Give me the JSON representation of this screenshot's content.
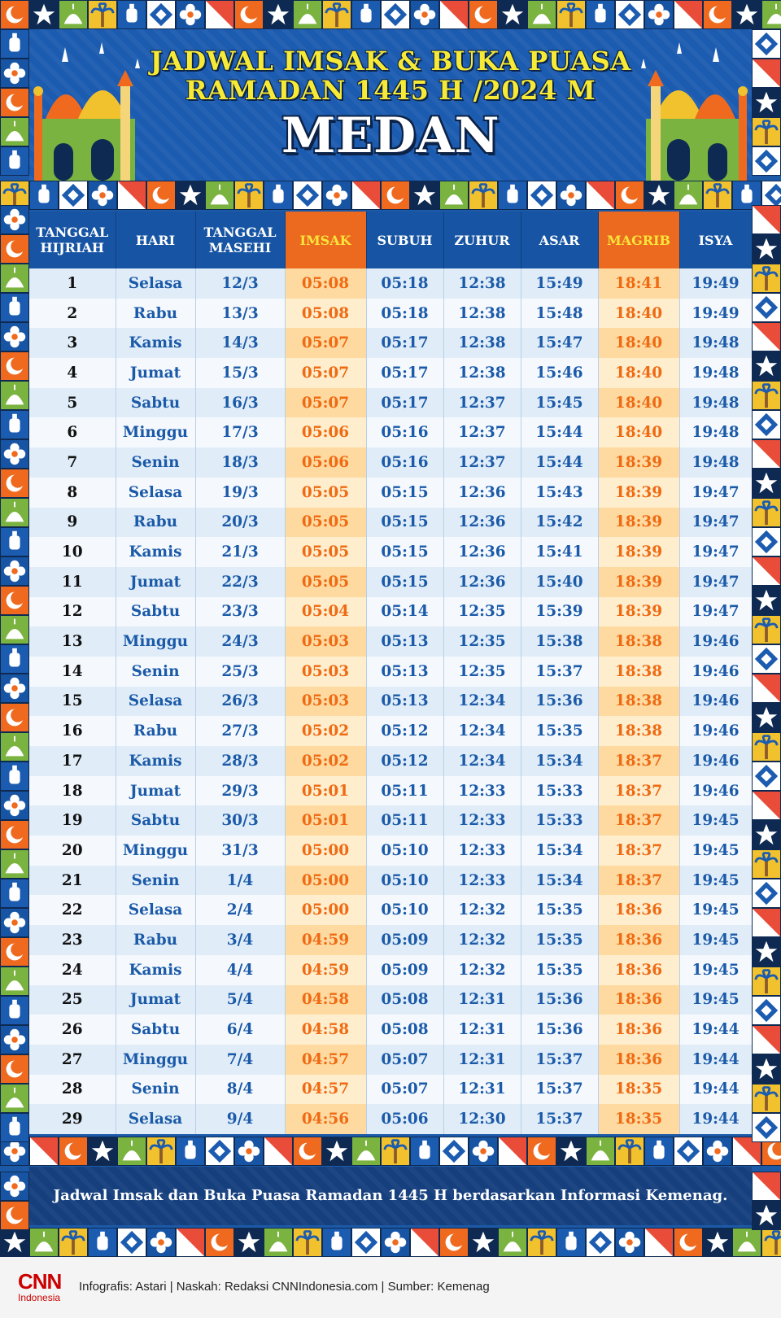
{
  "header": {
    "line1": "JADWAL IMSAK & BUKA PUASA",
    "line2": "RAMADAN 1445 H /2024 M",
    "city": "MEDAN"
  },
  "table": {
    "columns": [
      {
        "key": "hij",
        "label": "TANGGAL HIJRIAH",
        "highlight": false
      },
      {
        "key": "hari",
        "label": "HARI",
        "highlight": false
      },
      {
        "key": "masehi",
        "label": "TANGGAL MASEHI",
        "highlight": false
      },
      {
        "key": "imsak",
        "label": "IMSAK",
        "highlight": true
      },
      {
        "key": "subuh",
        "label": "SUBUH",
        "highlight": false
      },
      {
        "key": "zuhur",
        "label": "ZUHUR",
        "highlight": false
      },
      {
        "key": "asar",
        "label": "ASAR",
        "highlight": false
      },
      {
        "key": "magrib",
        "label": "MAGRIB",
        "highlight": true
      },
      {
        "key": "isya",
        "label": "ISYA",
        "highlight": false
      }
    ],
    "rows": [
      [
        "1",
        "Selasa",
        "12/3",
        "05:08",
        "05:18",
        "12:38",
        "15:49",
        "18:41",
        "19:49"
      ],
      [
        "2",
        "Rabu",
        "13/3",
        "05:08",
        "05:18",
        "12:38",
        "15:48",
        "18:40",
        "19:49"
      ],
      [
        "3",
        "Kamis",
        "14/3",
        "05:07",
        "05:17",
        "12:38",
        "15:47",
        "18:40",
        "19:48"
      ],
      [
        "4",
        "Jumat",
        "15/3",
        "05:07",
        "05:17",
        "12:38",
        "15:46",
        "18:40",
        "19:48"
      ],
      [
        "5",
        "Sabtu",
        "16/3",
        "05:07",
        "05:17",
        "12:37",
        "15:45",
        "18:40",
        "19:48"
      ],
      [
        "6",
        "Minggu",
        "17/3",
        "05:06",
        "05:16",
        "12:37",
        "15:44",
        "18:40",
        "19:48"
      ],
      [
        "7",
        "Senin",
        "18/3",
        "05:06",
        "05:16",
        "12:37",
        "15:44",
        "18:39",
        "19:48"
      ],
      [
        "8",
        "Selasa",
        "19/3",
        "05:05",
        "05:15",
        "12:36",
        "15:43",
        "18:39",
        "19:47"
      ],
      [
        "9",
        "Rabu",
        "20/3",
        "05:05",
        "05:15",
        "12:36",
        "15:42",
        "18:39",
        "19:47"
      ],
      [
        "10",
        "Kamis",
        "21/3",
        "05:05",
        "05:15",
        "12:36",
        "15:41",
        "18:39",
        "19:47"
      ],
      [
        "11",
        "Jumat",
        "22/3",
        "05:05",
        "05:15",
        "12:36",
        "15:40",
        "18:39",
        "19:47"
      ],
      [
        "12",
        "Sabtu",
        "23/3",
        "05:04",
        "05:14",
        "12:35",
        "15:39",
        "18:39",
        "19:47"
      ],
      [
        "13",
        "Minggu",
        "24/3",
        "05:03",
        "05:13",
        "12:35",
        "15:38",
        "18:38",
        "19:46"
      ],
      [
        "14",
        "Senin",
        "25/3",
        "05:03",
        "05:13",
        "12:35",
        "15:37",
        "18:38",
        "19:46"
      ],
      [
        "15",
        "Selasa",
        "26/3",
        "05:03",
        "05:13",
        "12:34",
        "15:36",
        "18:38",
        "19:46"
      ],
      [
        "16",
        "Rabu",
        "27/3",
        "05:02",
        "05:12",
        "12:34",
        "15:35",
        "18:38",
        "19:46"
      ],
      [
        "17",
        "Kamis",
        "28/3",
        "05:02",
        "05:12",
        "12:34",
        "15:34",
        "18:37",
        "19:46"
      ],
      [
        "18",
        "Jumat",
        "29/3",
        "05:01",
        "05:11",
        "12:33",
        "15:33",
        "18:37",
        "19:46"
      ],
      [
        "19",
        "Sabtu",
        "30/3",
        "05:01",
        "05:11",
        "12:33",
        "15:33",
        "18:37",
        "19:45"
      ],
      [
        "20",
        "Minggu",
        "31/3",
        "05:00",
        "05:10",
        "12:33",
        "15:34",
        "18:37",
        "19:45"
      ],
      [
        "21",
        "Senin",
        "1/4",
        "05:00",
        "05:10",
        "12:33",
        "15:34",
        "18:37",
        "19:45"
      ],
      [
        "22",
        "Selasa",
        "2/4",
        "05:00",
        "05:10",
        "12:32",
        "15:35",
        "18:36",
        "19:45"
      ],
      [
        "23",
        "Rabu",
        "3/4",
        "04:59",
        "05:09",
        "12:32",
        "15:35",
        "18:36",
        "19:45"
      ],
      [
        "24",
        "Kamis",
        "4/4",
        "04:59",
        "05:09",
        "12:32",
        "15:35",
        "18:36",
        "19:45"
      ],
      [
        "25",
        "Jumat",
        "5/4",
        "04:58",
        "05:08",
        "12:31",
        "15:36",
        "18:36",
        "19:45"
      ],
      [
        "26",
        "Sabtu",
        "6/4",
        "04:58",
        "05:08",
        "12:31",
        "15:36",
        "18:36",
        "19:44"
      ],
      [
        "27",
        "Minggu",
        "7/4",
        "04:57",
        "05:07",
        "12:31",
        "15:37",
        "18:36",
        "19:44"
      ],
      [
        "28",
        "Senin",
        "8/4",
        "04:57",
        "05:07",
        "12:31",
        "15:37",
        "18:35",
        "19:44"
      ],
      [
        "29",
        "Selasa",
        "9/4",
        "04:56",
        "05:06",
        "12:30",
        "15:37",
        "18:35",
        "19:44"
      ]
    ]
  },
  "note": "Jadwal Imsak dan Buka Puasa Ramadan 1445 H berdasarkan Informasi Kemenag.",
  "footer": {
    "logo_main": "CNN",
    "logo_sub": "Indonesia",
    "credits": "Infografis: Astari | Naskah: Redaksi CNNIndonesia.com | Sumber: Kemenag"
  },
  "colors": {
    "brand_blue": "#1b5bb0",
    "accent_orange": "#ec6a1f",
    "accent_yellow": "#f7ea37",
    "cnn_red": "#cc0000"
  },
  "decor_icons": [
    "crescent-icon",
    "star-icon",
    "mosque-dome-icon",
    "palm-icon",
    "lantern-icon",
    "diamond-icon",
    "flower-icon",
    "triangle-icon"
  ]
}
